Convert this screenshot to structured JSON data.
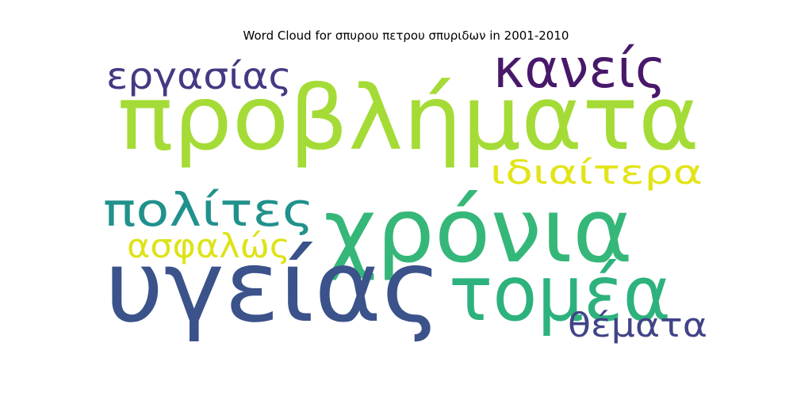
{
  "chart_data": {
    "type": "wordcloud",
    "title": "Word Cloud for σπυρου πετρου σπυριδων in 2001-2010",
    "words": [
      {
        "text": "προβλήματα",
        "color": "#a5db36"
      },
      {
        "text": "χρόνια",
        "color": "#35b779"
      },
      {
        "text": "υγείας",
        "color": "#3b528b"
      },
      {
        "text": "τομέα",
        "color": "#2db27d"
      },
      {
        "text": "κανείς",
        "color": "#48186a"
      },
      {
        "text": "εργασίας",
        "color": "#443983"
      },
      {
        "text": "πολίτες",
        "color": "#21918c"
      },
      {
        "text": "ιδιαίτερα",
        "color": "#e2e418"
      },
      {
        "text": "ασφαλώς",
        "color": "#dde318"
      },
      {
        "text": "θέματα",
        "color": "#414487"
      }
    ]
  }
}
